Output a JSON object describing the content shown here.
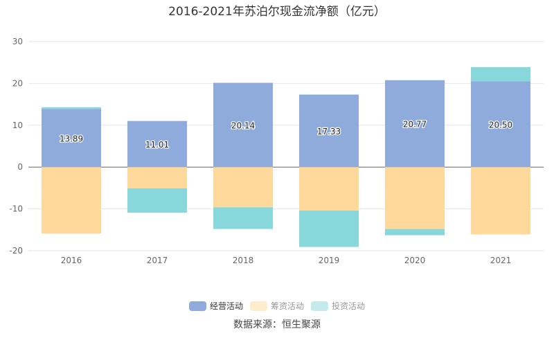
{
  "chart_data": {
    "type": "bar",
    "stacked": true,
    "title": "2016-2021年苏泊尔现金流净额（亿元）",
    "categories": [
      "2016",
      "2017",
      "2018",
      "2019",
      "2020",
      "2021"
    ],
    "ylim": [
      -20,
      30
    ],
    "yticks": [
      -20,
      -10,
      0,
      10,
      20,
      30
    ],
    "grid": true,
    "legend_position": "bottom",
    "series": [
      {
        "name": "经营活动",
        "color": "#8eabdb",
        "values": [
          13.89,
          11.01,
          20.14,
          17.33,
          20.77,
          20.5
        ],
        "labels": [
          "13.89",
          "11.01",
          "20.14",
          "17.33",
          "20.77",
          "20.50"
        ]
      },
      {
        "name": "筹资活动",
        "color": "#fed99b",
        "legend_color": "#feeccc",
        "values": [
          -15.9,
          -5.1,
          -9.6,
          -10.4,
          -14.8,
          -16.1
        ]
      },
      {
        "name": "投资活动",
        "color": "#88d8db",
        "legend_color": "#c3eaec",
        "values": [
          0.4,
          -5.8,
          -5.2,
          -8.7,
          -1.5,
          3.4
        ]
      }
    ]
  },
  "source": "数据来源：恒生聚源"
}
